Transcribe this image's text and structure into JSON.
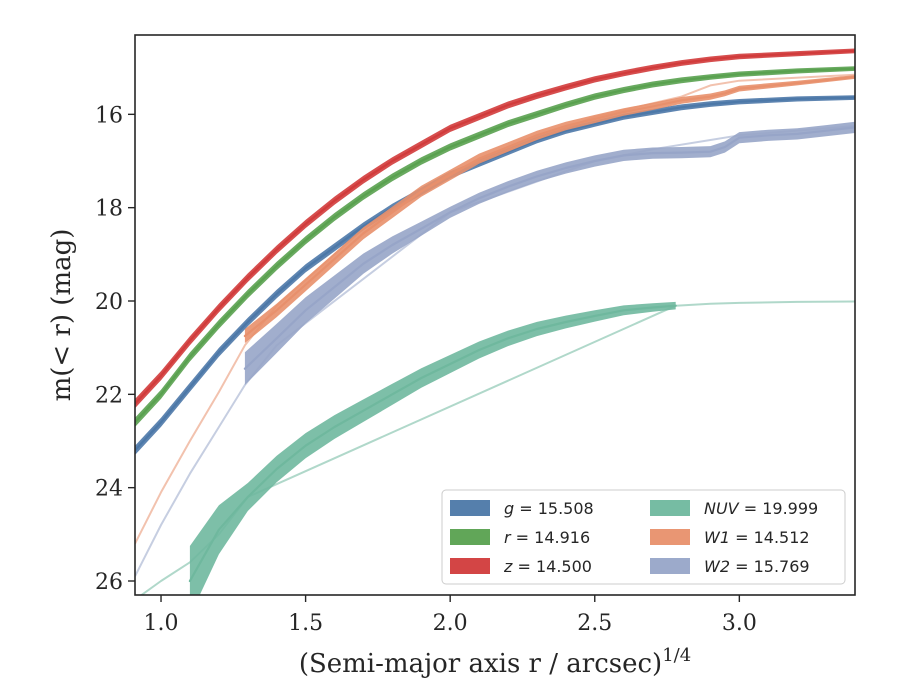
{
  "chart_data": {
    "type": "line",
    "title": "",
    "xlabel": "(Semi-major axis r / arcsec)",
    "xlabel_superscript": "1/4",
    "ylabel": "m(< r) (mag)",
    "xlim": [
      0.91,
      3.4
    ],
    "ylim": [
      26.3,
      14.3
    ],
    "y_inverted": true,
    "grid": false,
    "legend_position": "lower-right",
    "legend_columns": 2,
    "xticks": [
      "1.0",
      "1.5",
      "2.0",
      "2.5",
      "3.0"
    ],
    "xtick_values": [
      1.0,
      1.5,
      2.0,
      2.5,
      3.0
    ],
    "yticks": [
      "16",
      "18",
      "20",
      "22",
      "24",
      "26"
    ],
    "ytick_values": [
      16,
      18,
      20,
      22,
      24,
      26
    ],
    "series": [
      {
        "name": "g = 15.508",
        "legend_label": "g = 15.508",
        "color": "#4c78a8",
        "points": [
          [
            0.91,
            23.2
          ],
          [
            1.0,
            22.6
          ],
          [
            1.1,
            21.85
          ],
          [
            1.2,
            21.1
          ],
          [
            1.3,
            20.45
          ],
          [
            1.4,
            19.85
          ],
          [
            1.5,
            19.3
          ],
          [
            1.6,
            18.85
          ],
          [
            1.7,
            18.4
          ],
          [
            1.8,
            18.0
          ],
          [
            1.9,
            17.65
          ],
          [
            2.0,
            17.3
          ],
          [
            2.1,
            17.05
          ],
          [
            2.2,
            16.8
          ],
          [
            2.3,
            16.55
          ],
          [
            2.4,
            16.35
          ],
          [
            2.5,
            16.2
          ],
          [
            2.6,
            16.05
          ],
          [
            2.7,
            15.95
          ],
          [
            2.8,
            15.85
          ],
          [
            2.9,
            15.78
          ],
          [
            3.0,
            15.73
          ],
          [
            3.2,
            15.67
          ],
          [
            3.4,
            15.64
          ]
        ],
        "band": [
          [
            0.91,
            0.1
          ],
          [
            3.4,
            0.05
          ]
        ]
      },
      {
        "name": "r = 14.916",
        "legend_label": "r = 14.916",
        "color": "#59a14f",
        "points": [
          [
            0.91,
            22.6
          ],
          [
            1.0,
            22.0
          ],
          [
            1.1,
            21.2
          ],
          [
            1.2,
            20.5
          ],
          [
            1.3,
            19.85
          ],
          [
            1.4,
            19.25
          ],
          [
            1.5,
            18.7
          ],
          [
            1.6,
            18.2
          ],
          [
            1.7,
            17.75
          ],
          [
            1.8,
            17.35
          ],
          [
            1.9,
            17.0
          ],
          [
            2.0,
            16.7
          ],
          [
            2.1,
            16.45
          ],
          [
            2.2,
            16.2
          ],
          [
            2.3,
            16.0
          ],
          [
            2.4,
            15.8
          ],
          [
            2.5,
            15.62
          ],
          [
            2.6,
            15.48
          ],
          [
            2.7,
            15.36
          ],
          [
            2.8,
            15.27
          ],
          [
            2.9,
            15.2
          ],
          [
            3.0,
            15.14
          ],
          [
            3.2,
            15.07
          ],
          [
            3.4,
            15.02
          ]
        ],
        "band": [
          [
            0.91,
            0.1
          ],
          [
            3.4,
            0.05
          ]
        ]
      },
      {
        "name": "z = 14.500",
        "legend_label": "z = 14.500",
        "color": "#d13b3b",
        "points": [
          [
            0.91,
            22.2
          ],
          [
            1.0,
            21.6
          ],
          [
            1.1,
            20.85
          ],
          [
            1.2,
            20.15
          ],
          [
            1.3,
            19.5
          ],
          [
            1.4,
            18.9
          ],
          [
            1.5,
            18.35
          ],
          [
            1.6,
            17.85
          ],
          [
            1.7,
            17.4
          ],
          [
            1.8,
            17.0
          ],
          [
            1.9,
            16.65
          ],
          [
            2.0,
            16.3
          ],
          [
            2.1,
            16.05
          ],
          [
            2.2,
            15.8
          ],
          [
            2.3,
            15.6
          ],
          [
            2.4,
            15.42
          ],
          [
            2.5,
            15.25
          ],
          [
            2.6,
            15.12
          ],
          [
            2.7,
            15.0
          ],
          [
            2.8,
            14.9
          ],
          [
            2.9,
            14.82
          ],
          [
            3.0,
            14.76
          ],
          [
            3.2,
            14.7
          ],
          [
            3.4,
            14.64
          ]
        ],
        "band": [
          [
            0.91,
            0.1
          ],
          [
            3.4,
            0.05
          ]
        ]
      },
      {
        "name": "NUV = 19.999",
        "legend_label": "NUV = 19.999",
        "color": "#6fb89e",
        "points": [
          [
            1.1,
            26.0
          ],
          [
            1.2,
            24.9
          ],
          [
            1.3,
            24.2
          ],
          [
            1.4,
            23.6
          ],
          [
            1.5,
            23.1
          ],
          [
            1.6,
            22.7
          ],
          [
            1.7,
            22.35
          ],
          [
            1.8,
            22.0
          ],
          [
            1.9,
            21.65
          ],
          [
            2.0,
            21.35
          ],
          [
            2.1,
            21.05
          ],
          [
            2.2,
            20.8
          ],
          [
            2.3,
            20.6
          ],
          [
            2.4,
            20.45
          ],
          [
            2.5,
            20.32
          ],
          [
            2.6,
            20.2
          ],
          [
            2.7,
            20.14
          ],
          [
            2.78,
            20.1
          ]
        ],
        "band": [
          [
            1.1,
            0.75
          ],
          [
            1.3,
            0.3
          ],
          [
            2.78,
            0.08
          ]
        ],
        "faint_points": [
          [
            0.91,
            26.4
          ],
          [
            1.0,
            26.0
          ],
          [
            1.1,
            25.6
          ],
          [
            1.2,
            25.0
          ],
          [
            1.3,
            24.2
          ],
          [
            2.78,
            20.1
          ],
          [
            2.9,
            20.06
          ],
          [
            3.0,
            20.04
          ],
          [
            3.2,
            20.02
          ],
          [
            3.4,
            20.01
          ]
        ]
      },
      {
        "name": "W1 = 14.512",
        "legend_label": "W1 = 14.512",
        "color": "#e8906c",
        "points": [
          [
            1.29,
            20.75
          ],
          [
            1.4,
            20.2
          ],
          [
            1.5,
            19.65
          ],
          [
            1.6,
            19.1
          ],
          [
            1.7,
            18.55
          ],
          [
            1.8,
            18.1
          ],
          [
            1.9,
            17.65
          ],
          [
            2.0,
            17.3
          ],
          [
            2.1,
            16.95
          ],
          [
            2.2,
            16.7
          ],
          [
            2.3,
            16.45
          ],
          [
            2.4,
            16.25
          ],
          [
            2.5,
            16.1
          ],
          [
            2.6,
            15.95
          ],
          [
            2.7,
            15.83
          ],
          [
            2.8,
            15.7
          ],
          [
            2.9,
            15.62
          ],
          [
            2.95,
            15.55
          ],
          [
            3.0,
            15.45
          ],
          [
            3.2,
            15.33
          ],
          [
            3.4,
            15.2
          ]
        ],
        "band": [
          [
            1.29,
            0.15
          ],
          [
            3.4,
            0.04
          ]
        ],
        "faint_points": [
          [
            0.91,
            25.2
          ],
          [
            1.0,
            24.1
          ],
          [
            1.1,
            23.0
          ],
          [
            1.2,
            21.95
          ],
          [
            1.29,
            20.95
          ],
          [
            1.4,
            20.1
          ],
          [
            1.5,
            19.55
          ],
          [
            1.7,
            18.45
          ],
          [
            2.0,
            17.25
          ],
          [
            2.5,
            16.05
          ],
          [
            2.8,
            15.62
          ],
          [
            2.9,
            15.38
          ],
          [
            3.0,
            15.28
          ],
          [
            3.4,
            15.15
          ]
        ]
      },
      {
        "name": "W2 = 15.769",
        "legend_label": "W2 = 15.769",
        "color": "#97a5c8",
        "points": [
          [
            1.29,
            21.45
          ],
          [
            1.4,
            20.8
          ],
          [
            1.5,
            20.2
          ],
          [
            1.6,
            19.7
          ],
          [
            1.7,
            19.2
          ],
          [
            1.8,
            18.8
          ],
          [
            1.9,
            18.45
          ],
          [
            2.0,
            18.1
          ],
          [
            2.1,
            17.8
          ],
          [
            2.2,
            17.55
          ],
          [
            2.3,
            17.33
          ],
          [
            2.4,
            17.15
          ],
          [
            2.5,
            17.0
          ],
          [
            2.6,
            16.88
          ],
          [
            2.7,
            16.83
          ],
          [
            2.8,
            16.82
          ],
          [
            2.9,
            16.8
          ],
          [
            2.95,
            16.7
          ],
          [
            3.0,
            16.5
          ],
          [
            3.1,
            16.45
          ],
          [
            3.2,
            16.42
          ],
          [
            3.3,
            16.35
          ],
          [
            3.4,
            16.28
          ]
        ],
        "band": [
          [
            1.29,
            0.35
          ],
          [
            2.0,
            0.12
          ],
          [
            3.4,
            0.12
          ]
        ],
        "faint_points": [
          [
            0.91,
            25.9
          ],
          [
            1.0,
            24.8
          ],
          [
            1.1,
            23.7
          ],
          [
            1.2,
            22.7
          ],
          [
            1.29,
            21.8
          ],
          [
            1.4,
            20.95
          ],
          [
            2.0,
            18.1
          ],
          [
            2.5,
            17.0
          ],
          [
            2.7,
            16.75
          ],
          [
            2.9,
            16.55
          ],
          [
            3.0,
            16.45
          ],
          [
            3.4,
            16.25
          ]
        ]
      }
    ]
  }
}
